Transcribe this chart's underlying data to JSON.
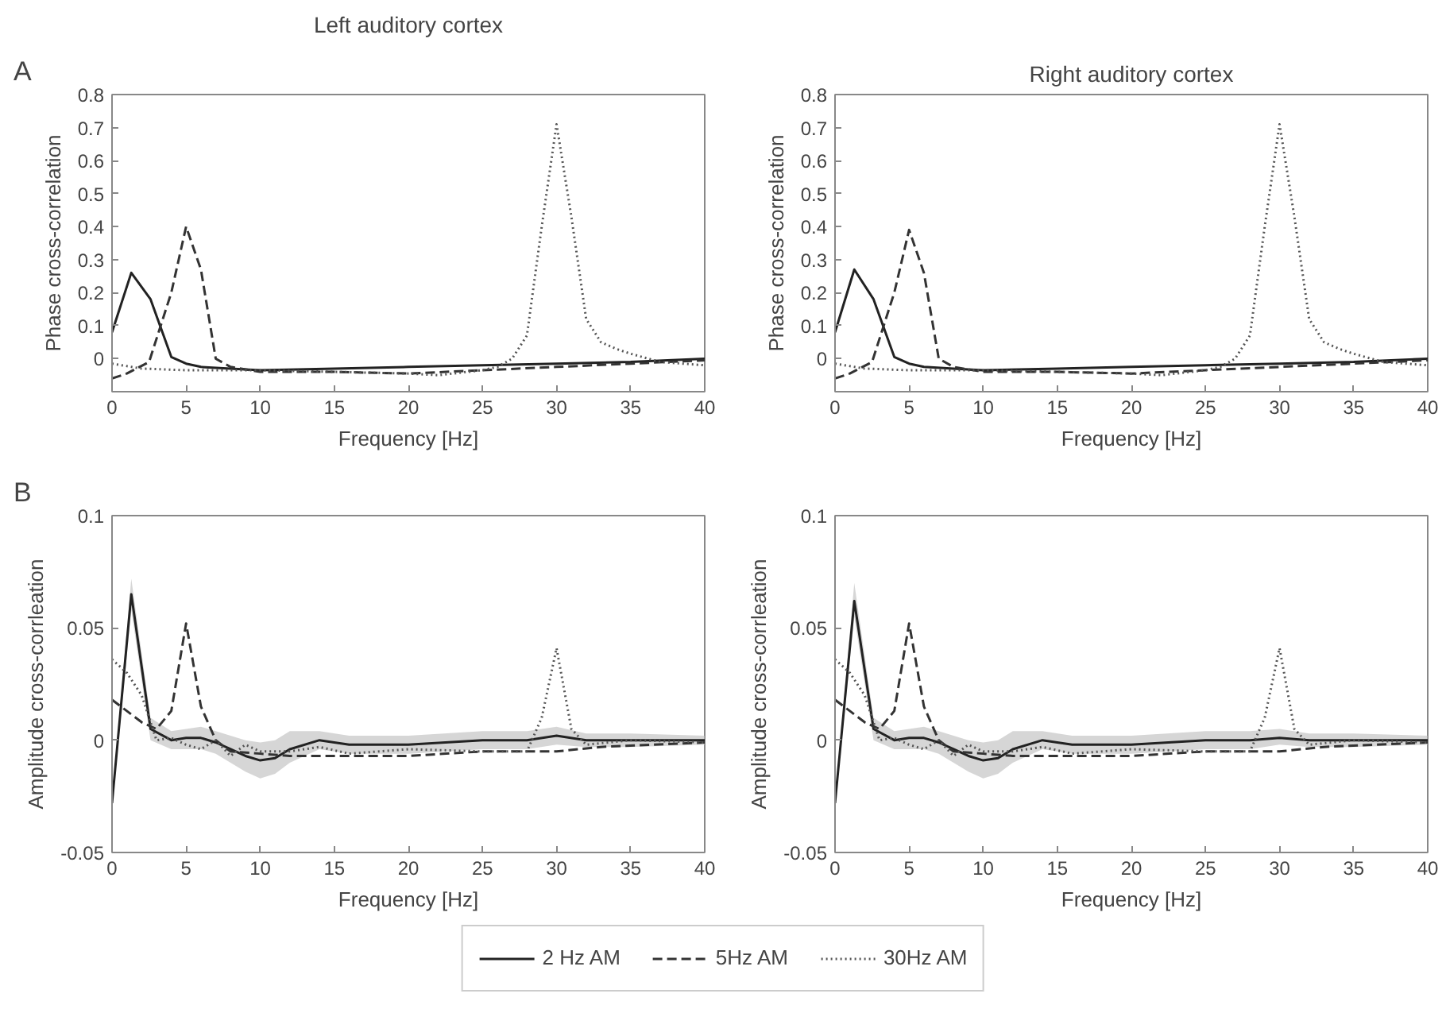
{
  "chart_data": [
    {
      "type": "line",
      "title": "Left auditory cortex",
      "annotations": [
        "A"
      ],
      "xlabel": "Frequency [Hz]",
      "ylabel": "Phase cross-correlation",
      "xlim": [
        0,
        40
      ],
      "ylim": [
        -0.1,
        0.8
      ],
      "xticks": [
        0,
        5,
        10,
        15,
        20,
        25,
        30,
        35,
        40
      ],
      "yticks": [
        0,
        0.1,
        0.2,
        0.3,
        0.4,
        0.5,
        0.6,
        0.7,
        0.8
      ],
      "grid": false,
      "legend": "bottom",
      "series": [
        {
          "name": "2 Hz AM",
          "color": "#222222",
          "line_style": "solid",
          "x": [
            0,
            1.3,
            2.6,
            4,
            5,
            6,
            8,
            10,
            15,
            20,
            25,
            30,
            35,
            40
          ],
          "values": [
            0.08,
            0.26,
            0.18,
            0.005,
            -0.015,
            -0.025,
            -0.03,
            -0.035,
            -0.03,
            -0.025,
            -0.02,
            -0.015,
            -0.01,
            0.0
          ]
        },
        {
          "name": "5Hz AM",
          "color": "#333333",
          "line_style": "dashed",
          "x": [
            0,
            1,
            2.5,
            4,
            5,
            6,
            7,
            8,
            10,
            15,
            20,
            25,
            30,
            35,
            40
          ],
          "values": [
            -0.06,
            -0.045,
            -0.01,
            0.2,
            0.4,
            0.27,
            0.0,
            -0.025,
            -0.04,
            -0.04,
            -0.045,
            -0.035,
            -0.025,
            -0.015,
            -0.005
          ]
        },
        {
          "name": "30Hz AM",
          "color": "#555555",
          "line_style": "dotted",
          "x": [
            0,
            2,
            5,
            10,
            15,
            20,
            22,
            25,
            26,
            27,
            28,
            29,
            30,
            31,
            32,
            33,
            34,
            35,
            37,
            40
          ],
          "values": [
            -0.015,
            -0.03,
            -0.035,
            -0.035,
            -0.04,
            -0.045,
            -0.05,
            -0.035,
            -0.025,
            0.0,
            0.07,
            0.4,
            0.71,
            0.43,
            0.12,
            0.05,
            0.03,
            0.015,
            -0.01,
            -0.02
          ]
        }
      ]
    },
    {
      "type": "line",
      "title": "Right auditory cortex",
      "xlabel": "Frequency [Hz]",
      "ylabel": "Phase cross-correlation",
      "xlim": [
        0,
        40
      ],
      "ylim": [
        -0.1,
        0.8
      ],
      "xticks": [
        0,
        5,
        10,
        15,
        20,
        25,
        30,
        35,
        40
      ],
      "yticks": [
        0,
        0.1,
        0.2,
        0.3,
        0.4,
        0.5,
        0.6,
        0.7,
        0.8
      ],
      "grid": false,
      "series": [
        {
          "color": "#222222",
          "line_style": "solid",
          "x": [
            0,
            1.3,
            2.6,
            4,
            5,
            6,
            8,
            10,
            15,
            20,
            25,
            30,
            35,
            40
          ],
          "values": [
            0.08,
            0.27,
            0.18,
            0.005,
            -0.015,
            -0.025,
            -0.03,
            -0.035,
            -0.03,
            -0.025,
            -0.02,
            -0.015,
            -0.01,
            0.0
          ]
        },
        {
          "color": "#333333",
          "line_style": "dashed",
          "x": [
            0,
            1,
            2.5,
            4,
            5,
            6,
            7,
            8,
            10,
            15,
            20,
            25,
            30,
            35,
            40
          ],
          "values": [
            -0.06,
            -0.045,
            -0.01,
            0.2,
            0.39,
            0.26,
            0.0,
            -0.025,
            -0.04,
            -0.04,
            -0.045,
            -0.035,
            -0.025,
            -0.015,
            -0.005
          ]
        },
        {
          "color": "#555555",
          "line_style": "dotted",
          "x": [
            0,
            2,
            5,
            10,
            15,
            20,
            22,
            25,
            26,
            27,
            28,
            29,
            30,
            31,
            32,
            33,
            34,
            35,
            37,
            40
          ],
          "values": [
            -0.015,
            -0.03,
            -0.035,
            -0.035,
            -0.04,
            -0.045,
            -0.05,
            -0.035,
            -0.025,
            0.0,
            0.07,
            0.4,
            0.71,
            0.43,
            0.12,
            0.05,
            0.03,
            0.015,
            -0.01,
            -0.02
          ]
        }
      ]
    },
    {
      "type": "line",
      "annotations": [
        "B"
      ],
      "xlabel": "Frequency [Hz]",
      "ylabel": "Amplitude cross-corrleation",
      "xlim": [
        0,
        40
      ],
      "ylim": [
        -0.05,
        0.1
      ],
      "xticks": [
        0,
        5,
        10,
        15,
        20,
        25,
        30,
        35,
        40
      ],
      "yticks": [
        -0.05,
        0,
        0.05,
        0.1
      ],
      "grid": false,
      "series": [
        {
          "color": "#222222",
          "line_style": "solid",
          "x": [
            0,
            1.3,
            2.6,
            4,
            5,
            6,
            7,
            8,
            9,
            10,
            11,
            12,
            14,
            16,
            20,
            25,
            28,
            30,
            32,
            35,
            40
          ],
          "values": [
            -0.028,
            0.065,
            0.005,
            0.0,
            0.001,
            0.001,
            -0.001,
            -0.004,
            -0.007,
            -0.009,
            -0.008,
            -0.004,
            0.0,
            -0.002,
            -0.002,
            0.0,
            0.0,
            0.002,
            0.0,
            0.0,
            0.0
          ],
          "lower": [
            -0.03,
            0.058,
            0.0,
            -0.004,
            -0.004,
            -0.004,
            -0.006,
            -0.01,
            -0.014,
            -0.017,
            -0.015,
            -0.01,
            -0.004,
            -0.006,
            -0.006,
            -0.004,
            -0.004,
            -0.002,
            -0.003,
            -0.003,
            -0.002
          ],
          "upper": [
            -0.026,
            0.072,
            0.01,
            0.004,
            0.005,
            0.006,
            0.004,
            0.002,
            0.0,
            -0.001,
            0.0,
            0.004,
            0.004,
            0.002,
            0.002,
            0.004,
            0.004,
            0.006,
            0.003,
            0.003,
            0.002
          ]
        },
        {
          "color": "#333333",
          "line_style": "dashed",
          "x": [
            0,
            1,
            2,
            3,
            4,
            5,
            6,
            7,
            8,
            10,
            12,
            15,
            20,
            25,
            30,
            33,
            40
          ],
          "values": [
            0.018,
            0.013,
            0.008,
            0.005,
            0.013,
            0.052,
            0.015,
            0.0,
            -0.005,
            -0.006,
            -0.007,
            -0.007,
            -0.007,
            -0.005,
            -0.005,
            -0.003,
            -0.001
          ]
        },
        {
          "color": "#555555",
          "line_style": "dotted",
          "x": [
            0,
            1,
            2,
            3,
            4,
            5,
            6,
            7,
            8,
            9,
            10,
            12,
            14,
            16,
            20,
            25,
            28,
            29,
            30,
            31,
            32,
            35,
            40
          ],
          "values": [
            0.036,
            0.03,
            0.02,
            0.0,
            0.001,
            -0.002,
            -0.004,
            0.0,
            -0.007,
            -0.002,
            -0.005,
            -0.005,
            -0.003,
            -0.006,
            -0.004,
            -0.005,
            -0.005,
            0.01,
            0.041,
            0.005,
            -0.002,
            0.0,
            -0.001
          ]
        }
      ]
    },
    {
      "type": "line",
      "xlabel": "Frequency [Hz]",
      "ylabel": "Amplitude cross-corrleation",
      "xlim": [
        0,
        40
      ],
      "ylim": [
        -0.05,
        0.1
      ],
      "xticks": [
        0,
        5,
        10,
        15,
        20,
        25,
        30,
        35,
        40
      ],
      "yticks": [
        -0.05,
        0,
        0.05,
        0.1
      ],
      "grid": false,
      "series": [
        {
          "color": "#222222",
          "line_style": "solid",
          "x": [
            0,
            1.3,
            2.6,
            4,
            5,
            6,
            7,
            8,
            9,
            10,
            11,
            12,
            14,
            16,
            20,
            25,
            28,
            30,
            32,
            35,
            40
          ],
          "values": [
            -0.028,
            0.062,
            0.005,
            0.0,
            0.001,
            0.001,
            -0.001,
            -0.004,
            -0.007,
            -0.009,
            -0.008,
            -0.004,
            0.0,
            -0.002,
            -0.002,
            0.0,
            0.0,
            0.001,
            0.0,
            0.0,
            0.0
          ],
          "lower": [
            -0.03,
            0.055,
            0.0,
            -0.004,
            -0.004,
            -0.004,
            -0.006,
            -0.01,
            -0.014,
            -0.017,
            -0.015,
            -0.01,
            -0.004,
            -0.006,
            -0.006,
            -0.004,
            -0.004,
            -0.002,
            -0.003,
            -0.003,
            -0.002
          ],
          "upper": [
            -0.026,
            0.07,
            0.01,
            0.004,
            0.005,
            0.006,
            0.004,
            0.002,
            0.0,
            -0.001,
            0.0,
            0.004,
            0.004,
            0.002,
            0.002,
            0.004,
            0.004,
            0.005,
            0.003,
            0.003,
            0.002
          ]
        },
        {
          "color": "#333333",
          "line_style": "dashed",
          "x": [
            0,
            1,
            2,
            3,
            4,
            5,
            6,
            7,
            8,
            10,
            12,
            15,
            20,
            25,
            30,
            33,
            40
          ],
          "values": [
            0.018,
            0.013,
            0.008,
            0.005,
            0.013,
            0.052,
            0.015,
            0.0,
            -0.005,
            -0.006,
            -0.007,
            -0.007,
            -0.007,
            -0.005,
            -0.005,
            -0.003,
            -0.001
          ]
        },
        {
          "color": "#555555",
          "line_style": "dotted",
          "x": [
            0,
            1,
            2,
            3,
            4,
            5,
            6,
            7,
            8,
            9,
            10,
            12,
            14,
            16,
            20,
            25,
            28,
            29,
            30,
            31,
            32,
            35,
            40
          ],
          "values": [
            0.036,
            0.03,
            0.02,
            0.0,
            0.001,
            -0.002,
            -0.004,
            0.0,
            -0.007,
            -0.002,
            -0.005,
            -0.005,
            -0.003,
            -0.006,
            -0.004,
            -0.005,
            -0.005,
            0.01,
            0.041,
            0.005,
            -0.002,
            0.0,
            -0.001
          ]
        }
      ]
    }
  ]
}
